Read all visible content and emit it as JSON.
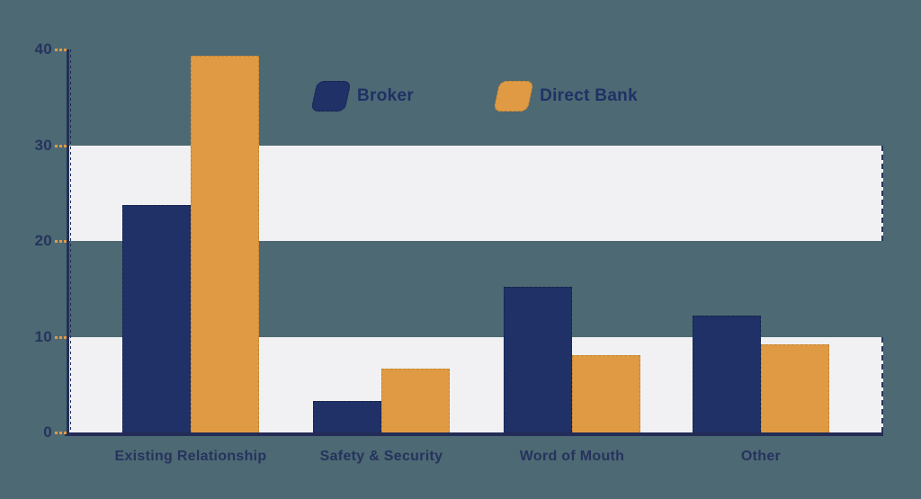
{
  "chart_data": {
    "type": "bar",
    "title": "",
    "categories": [
      "Existing Relationship",
      "Safety & Security",
      "Word of Mouth",
      "Other"
    ],
    "series": [
      {
        "name": "Broker",
        "color": "#1f3166",
        "border_color": "#16234b",
        "values": [
          23.8,
          3.3,
          15.2,
          12.2
        ]
      },
      {
        "name": "Direct Bank",
        "color": "#e09a44",
        "border_color": "#c2842f",
        "values": [
          39.3,
          6.7,
          8.1,
          9.2
        ]
      }
    ],
    "ylim": [
      0,
      40
    ],
    "yticks": [
      0,
      10,
      20,
      30,
      40
    ],
    "band_ranges": [
      [
        0,
        10
      ],
      [
        20,
        30
      ]
    ],
    "legend_position": "top-center",
    "grid": "banded-horizontal"
  },
  "colors": {
    "background": "#4d6973",
    "band_fill": "#f1f1f4",
    "axis": "#232c55",
    "tick_dash": "#e09a44",
    "text": "#26335e"
  }
}
